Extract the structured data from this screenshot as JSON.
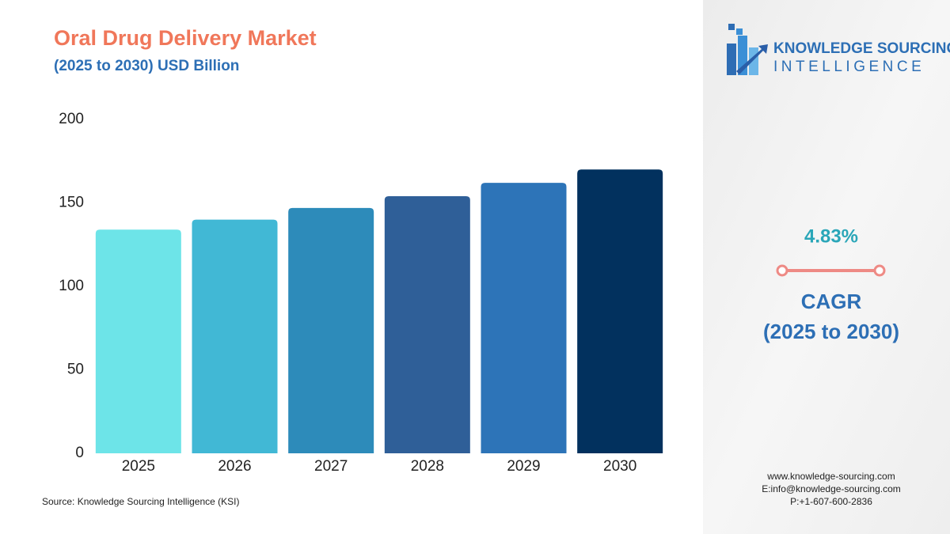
{
  "chart_data": {
    "type": "bar",
    "title": "Oral Drug Delivery Market",
    "subtitle": "(2025 to 2030) USD Billion",
    "categories": [
      "2025",
      "2026",
      "2027",
      "2028",
      "2029",
      "2030"
    ],
    "values": [
      134,
      140,
      147,
      154,
      162,
      170
    ],
    "colors": [
      "#6de4e8",
      "#41b8d5",
      "#2d8bba",
      "#2f5f98",
      "#2d74b8",
      "#02315e"
    ],
    "ylim": [
      0,
      200
    ],
    "yticks": [
      0,
      50,
      100,
      150,
      200
    ],
    "grid": false,
    "source": "Source: Knowledge Sourcing Intelligence (KSI)"
  },
  "panel": {
    "logo_line1": "KNOWLEDGE SOURCING",
    "logo_line2": "INTELLIGENCE",
    "cagr_value": "4.83%",
    "cagr_label": "CAGR",
    "cagr_period": "(2025 to 2030)",
    "contact": [
      "www.knowledge-sourcing.com",
      "E:info@knowledge-sourcing.com",
      "P:+1-607-600-2836"
    ]
  }
}
